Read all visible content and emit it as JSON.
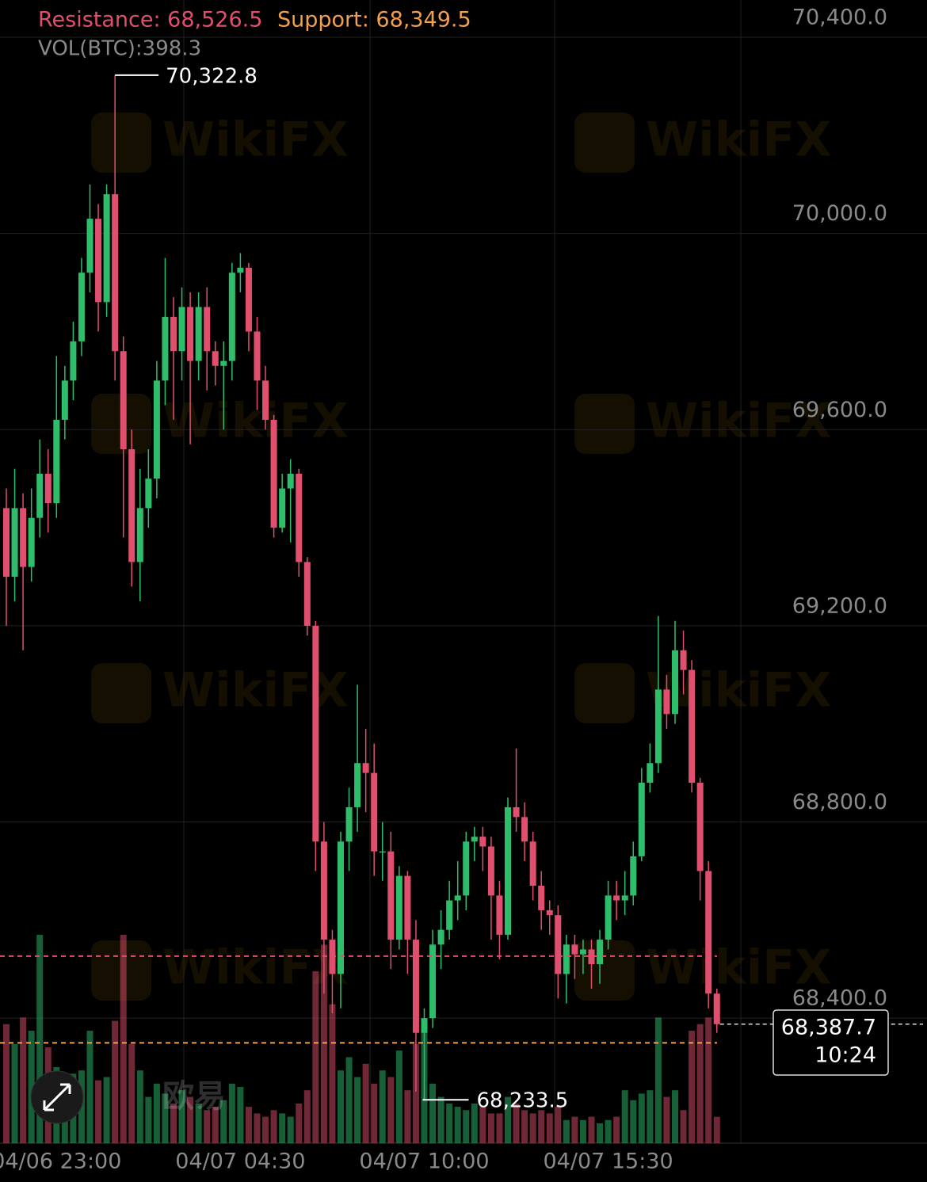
{
  "chart_data": {
    "type": "candlestick",
    "categories": [
      null,
      null,
      null,
      null,
      null,
      null,
      "04/06 23:00",
      null,
      null,
      null,
      null,
      null,
      null,
      null,
      null,
      null,
      null,
      null,
      null,
      null,
      null,
      null,
      null,
      null,
      null,
      null,
      null,
      null,
      "04/07 04:30",
      null,
      null,
      null,
      null,
      null,
      null,
      null,
      null,
      null,
      null,
      null,
      null,
      null,
      null,
      null,
      null,
      null,
      null,
      null,
      null,
      null,
      "04/07 10:00",
      null,
      null,
      null,
      null,
      null,
      null,
      null,
      null,
      null,
      null,
      null,
      null,
      null,
      null,
      null,
      null,
      null,
      null,
      null,
      null,
      null,
      "04/07 15:30",
      null,
      null,
      null,
      null,
      null,
      null,
      null,
      null,
      null,
      null,
      null,
      null,
      null
    ],
    "open": [
      69440,
      69300,
      69440,
      69320,
      69420,
      69510,
      69450,
      69620,
      69700,
      69780,
      69920,
      70030,
      69860,
      70080,
      69760,
      69560,
      69330,
      69440,
      69500,
      69700,
      69830,
      69760,
      69850,
      69740,
      69850,
      69760,
      69730,
      69740,
      69920,
      69930,
      69800,
      69700,
      69620,
      69400,
      69480,
      69510,
      69330,
      69200,
      68760,
      68560,
      68490,
      68760,
      68830,
      68920,
      68900,
      68740,
      68740,
      68560,
      68690,
      68560,
      68370,
      68400,
      68550,
      68580,
      68640,
      68650,
      68760,
      68770,
      68750,
      68650,
      68570,
      68830,
      68810,
      68760,
      68670,
      68620,
      68610,
      68490,
      68550,
      68530,
      68540,
      68510,
      68560,
      68650,
      68640,
      68650,
      68730,
      68880,
      68920,
      69070,
      69020,
      69150,
      69110,
      68880,
      68700,
      68450
    ],
    "high": [
      69480,
      69520,
      69470,
      69480,
      69580,
      69560,
      69750,
      69730,
      69820,
      69950,
      70100,
      70060,
      70100,
      70322.8,
      69790,
      69600,
      69520,
      69560,
      69740,
      69950,
      69870,
      69890,
      69880,
      69880,
      69890,
      69780,
      69780,
      69940,
      69960,
      69940,
      69830,
      69730,
      69630,
      69510,
      69540,
      69520,
      69340,
      69210,
      68800,
      68580,
      68780,
      68870,
      69080,
      68990,
      68960,
      68800,
      68780,
      68710,
      68700,
      68600,
      68420,
      68580,
      68620,
      68680,
      68720,
      68780,
      68790,
      68790,
      68770,
      68680,
      68850,
      68950,
      68840,
      68780,
      68700,
      68640,
      68630,
      68570,
      68570,
      68560,
      68560,
      68580,
      68680,
      68680,
      68700,
      68760,
      68910,
      68960,
      69220,
      69100,
      69210,
      69190,
      69130,
      68890,
      68720,
      68460
    ],
    "low": [
      69200,
      69250,
      69150,
      69290,
      69380,
      69390,
      69420,
      69580,
      69660,
      69750,
      69880,
      69800,
      69830,
      69700,
      69380,
      69280,
      69250,
      69400,
      69460,
      69650,
      69620,
      69700,
      69570,
      69700,
      69680,
      69690,
      69600,
      69700,
      69880,
      69760,
      69640,
      69600,
      69380,
      69390,
      69370,
      69300,
      69180,
      68700,
      68450,
      68410,
      68420,
      68700,
      68780,
      68820,
      68690,
      68680,
      68500,
      68540,
      68490,
      68250,
      68233.5,
      68380,
      68500,
      68560,
      68600,
      68620,
      68720,
      68700,
      68560,
      68520,
      68560,
      68780,
      68720,
      68640,
      68580,
      68570,
      68440,
      68430,
      68480,
      68490,
      68460,
      68470,
      68540,
      68600,
      68610,
      68630,
      68720,
      68860,
      68900,
      68990,
      69000,
      69060,
      68860,
      68640,
      68420,
      68370
    ],
    "close": [
      69300,
      69440,
      69320,
      69420,
      69510,
      69450,
      69620,
      69700,
      69780,
      69920,
      70030,
      69860,
      70080,
      69760,
      69560,
      69330,
      69440,
      69500,
      69700,
      69830,
      69760,
      69850,
      69740,
      69850,
      69760,
      69730,
      69740,
      69920,
      69930,
      69800,
      69700,
      69620,
      69400,
      69480,
      69510,
      69330,
      69200,
      68760,
      68560,
      68490,
      68760,
      68830,
      68920,
      68900,
      68740,
      68740,
      68560,
      68690,
      68560,
      68370,
      68400,
      68550,
      68580,
      68640,
      68650,
      68760,
      68770,
      68750,
      68650,
      68570,
      68830,
      68810,
      68760,
      68670,
      68620,
      68610,
      68490,
      68550,
      68530,
      68540,
      68510,
      68560,
      68650,
      68640,
      68650,
      68730,
      68880,
      68920,
      69070,
      69020,
      69150,
      69110,
      68880,
      68700,
      68450,
      68387.7
    ],
    "volume": [
      1800,
      1500,
      1900,
      1700,
      3150,
      1450,
      1150,
      950,
      1050,
      1100,
      1700,
      950,
      1000,
      1850,
      3150,
      1500,
      1100,
      700,
      900,
      750,
      600,
      800,
      700,
      600,
      500,
      550,
      650,
      900,
      850,
      550,
      450,
      400,
      500,
      450,
      400,
      600,
      800,
      2600,
      3000,
      2100,
      1100,
      1300,
      1000,
      1200,
      900,
      1100,
      1000,
      1400,
      800,
      1500,
      1700,
      900,
      700,
      600,
      550,
      500,
      600,
      550,
      450,
      450,
      700,
      600,
      500,
      450,
      500,
      450,
      550,
      350,
      400,
      350,
      400,
      300,
      350,
      400,
      800,
      650,
      750,
      800,
      1900,
      700,
      800,
      500,
      1700,
      1800,
      1900,
      398.3
    ],
    "up_color": "#2ebd6b",
    "down_color": "#e0506e",
    "ylim": [
      68145,
      70476
    ],
    "yticks": [
      {
        "value": 68400,
        "label": "68,400.0"
      },
      {
        "value": 68800,
        "label": "68,800.0"
      },
      {
        "value": 69200,
        "label": "69,200.0"
      },
      {
        "value": 69600,
        "label": "69,600.0"
      },
      {
        "value": 70000,
        "label": "70,000.0"
      },
      {
        "value": 70400,
        "label": "70,400.0"
      }
    ],
    "grid": true,
    "resistance": {
      "value": 68526.5,
      "label": "Resistance: 68,526.5",
      "color": "#e0506e"
    },
    "support": {
      "value": 68349.5,
      "label": "Support: 68,349.5",
      "color": "#f0a050"
    },
    "volume_label": "VOL(BTC):398.3",
    "high_label": {
      "value": 70322.8,
      "label": "70,322.8"
    },
    "low_label": {
      "value": 68233.5,
      "label": "68,233.5"
    },
    "last_price": {
      "value": 68387.7,
      "label": "68,387.7"
    },
    "countdown": "10:24"
  },
  "watermark": "WikiFX",
  "brand": "欧易"
}
